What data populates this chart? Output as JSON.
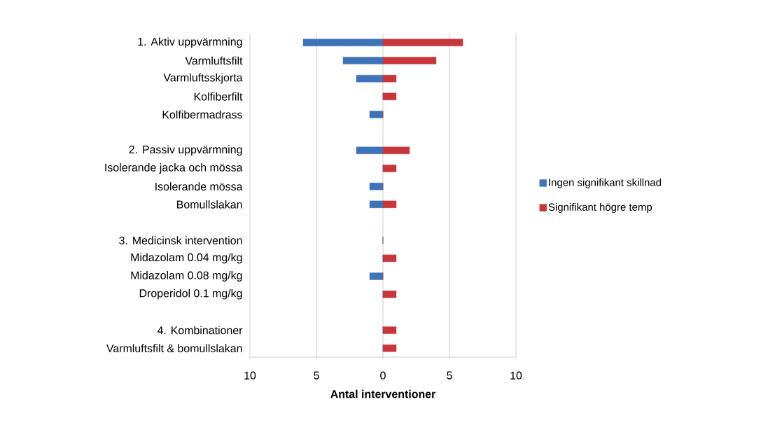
{
  "chart_data": {
    "type": "bar",
    "orientation": "horizontal",
    "xlabel": "Antal interventioner",
    "categories": [
      "1. Aktiv uppvärmning",
      "Varmluftsfilt",
      "Varmluftsskjorta",
      "Kolfiberfilt",
      "Kolfibermadrass",
      null,
      "2. Passiv uppvärmning",
      "Isolerande jacka och mössa",
      "Isolerande mössa",
      "Bomullslakan",
      null,
      "3. Medicinsk intervention",
      "Midazolam 0.04 mg/kg",
      "Midazolam 0.08 mg/kg",
      "Droperidol 0.1 mg/kg",
      null,
      "4. Kombinationer",
      "Varmluftsfilt & bomullslakan"
    ],
    "series": [
      {
        "name": "Ingen signifikant skillnad",
        "color": "#3f73b8",
        "values": [
          -6,
          -3,
          -2,
          0,
          -1,
          null,
          -2,
          0,
          -1,
          -1,
          null,
          0,
          0,
          -1,
          0,
          null,
          0,
          0
        ]
      },
      {
        "name": "Signifikant högre temp",
        "color": "#c6363a",
        "values": [
          6,
          4,
          1,
          1,
          0,
          null,
          2,
          1,
          0,
          1,
          null,
          0,
          1,
          0,
          1,
          null,
          1,
          1
        ]
      }
    ],
    "xlim": [
      -10,
      10
    ],
    "xticks": [
      {
        "value": -10,
        "label": "10"
      },
      {
        "value": -5,
        "label": "5"
      },
      0,
      5,
      10
    ],
    "grid": "x",
    "legend": "right"
  }
}
